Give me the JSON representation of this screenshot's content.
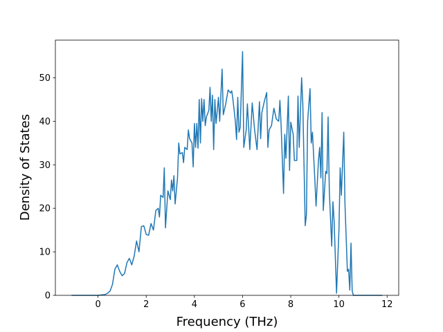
{
  "chart_data": {
    "type": "line",
    "xlabel": "Frequency (THz)",
    "ylabel": "Density of States",
    "color": "#1f77b4",
    "x": [
      -1.1,
      -0.5,
      0,
      0.3,
      0.4,
      0.5,
      0.6,
      0.7,
      0.8,
      0.9,
      1.0,
      1.1,
      1.2,
      1.3,
      1.4,
      1.5,
      1.6,
      1.7,
      1.8,
      1.9,
      2.0,
      2.1,
      2.2,
      2.3,
      2.4,
      2.5,
      2.55,
      2.6,
      2.7,
      2.75,
      2.8,
      2.9,
      3.0,
      3.05,
      3.1,
      3.15,
      3.2,
      3.3,
      3.35,
      3.4,
      3.5,
      3.55,
      3.6,
      3.7,
      3.75,
      3.8,
      3.9,
      3.95,
      4.0,
      4.05,
      4.1,
      4.15,
      4.2,
      4.25,
      4.3,
      4.35,
      4.4,
      4.45,
      4.5,
      4.6,
      4.65,
      4.7,
      4.75,
      4.8,
      4.85,
      4.9,
      5.0,
      5.05,
      5.15,
      5.2,
      5.3,
      5.4,
      5.5,
      5.55,
      5.6,
      5.7,
      5.75,
      5.8,
      5.85,
      5.9,
      6.0,
      6.05,
      6.15,
      6.2,
      6.3,
      6.4,
      6.5,
      6.6,
      6.7,
      6.75,
      6.8,
      6.9,
      7.0,
      7.05,
      7.1,
      7.2,
      7.3,
      7.4,
      7.5,
      7.55,
      7.6,
      7.7,
      7.75,
      7.8,
      7.9,
      7.95,
      8.0,
      8.1,
      8.15,
      8.25,
      8.3,
      8.35,
      8.45,
      8.5,
      8.6,
      8.65,
      8.7,
      8.8,
      8.85,
      8.9,
      9.0,
      9.05,
      9.15,
      9.2,
      9.25,
      9.3,
      9.35,
      9.45,
      9.5,
      9.55,
      9.6,
      9.7,
      9.75,
      9.8,
      9.9,
      10.0,
      10.05,
      10.1,
      10.2,
      10.25,
      10.35,
      10.4,
      10.45,
      10.5,
      10.55,
      10.6,
      11.8
    ],
    "values": [
      0,
      0,
      0,
      0.2,
      0.5,
      1,
      2.5,
      6,
      7,
      5.5,
      4.5,
      5,
      7.5,
      8.5,
      7,
      9,
      12.5,
      10,
      15.8,
      16,
      14,
      13.8,
      16.5,
      15,
      19.5,
      20,
      18,
      23,
      22.5,
      29.3,
      15.5,
      24,
      22,
      26.5,
      24,
      27.5,
      21,
      27,
      35,
      32.5,
      32.8,
      30.5,
      34,
      33.5,
      38,
      36,
      35,
      29.5,
      39.5,
      34,
      39.5,
      33.8,
      45,
      35,
      45.2,
      40,
      45,
      39,
      41,
      42.5,
      47.8,
      40,
      46,
      33.5,
      45,
      39.5,
      45.5,
      40,
      52,
      41.5,
      44,
      47.2,
      46.5,
      47,
      45,
      40,
      35.8,
      45.5,
      37.5,
      38.5,
      56,
      34,
      38,
      44,
      33.5,
      44.2,
      38,
      33.5,
      44.5,
      36,
      42,
      44.5,
      46.6,
      34,
      38,
      39,
      43,
      40.5,
      40,
      44.8,
      39,
      23.4,
      37,
      31.5,
      45.8,
      28.7,
      39.8,
      37,
      31,
      31,
      45.8,
      34,
      50,
      44,
      16,
      18.5,
      40,
      47.5,
      35,
      37.5,
      26.5,
      20.5,
      31,
      34,
      27,
      42,
      19.5,
      28.5,
      28,
      41,
      24,
      11.3,
      21.5,
      17,
      0.5,
      15,
      29.3,
      23,
      37.5,
      21,
      5.5,
      6,
      1.2,
      12,
      1,
      0,
      0
    ],
    "xlim": [
      -1.77,
      12.48
    ],
    "ylim": [
      0,
      58.65
    ],
    "xticks": [
      0,
      2,
      4,
      6,
      8,
      10,
      12
    ],
    "yticks": [
      0,
      10,
      20,
      30,
      40,
      50
    ]
  }
}
